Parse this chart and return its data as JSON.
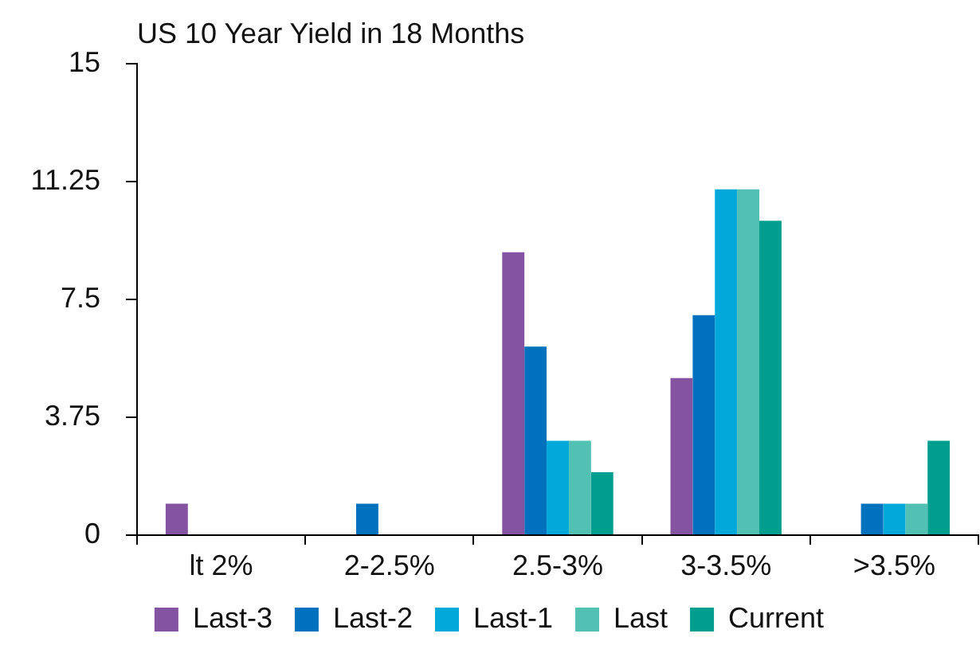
{
  "chart_data": {
    "type": "bar",
    "title": "US 10 Year Yield in 18 Months",
    "categories": [
      "lt 2%",
      "2-2.5%",
      "2.5-3%",
      "3-3.5%",
      ">3.5%"
    ],
    "series": [
      {
        "name": "Last-3",
        "color": "#8453a1",
        "values": [
          1,
          0,
          9,
          5,
          0
        ]
      },
      {
        "name": "Last-2",
        "color": "#0071bc",
        "values": [
          0,
          1,
          6,
          7,
          1
        ]
      },
      {
        "name": "Last-1",
        "color": "#00a9d9",
        "values": [
          0,
          0,
          3,
          11,
          1
        ]
      },
      {
        "name": "Last",
        "color": "#52c0b2",
        "values": [
          0,
          0,
          3,
          11,
          1
        ]
      },
      {
        "name": "Current",
        "color": "#009e8e",
        "values": [
          0,
          0,
          2,
          10,
          3
        ]
      }
    ],
    "ylim": [
      0,
      15
    ],
    "yticks": [
      0,
      3.75,
      7.5,
      11.25,
      15
    ],
    "grid": false,
    "legend": "bottom"
  }
}
